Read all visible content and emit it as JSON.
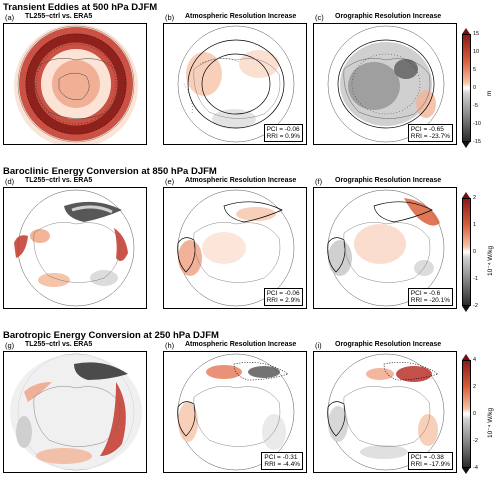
{
  "rows": [
    {
      "title": "Transient Eddies at 500 hPa DJFM",
      "unit": "m",
      "colorbar_ticks": [
        "15",
        "10",
        "5",
        "0",
        "-5",
        "-10",
        "-15"
      ],
      "panels": [
        {
          "label": "(a)",
          "title": "TL255–ctrl vs. ERA5",
          "pci": "",
          "rri": ""
        },
        {
          "label": "(b)",
          "title": "Atmospheric Resolution Increase",
          "pci": "PCI = -0.06",
          "rri": "RRI = 0.9%"
        },
        {
          "label": "(c)",
          "title": "Orographic Resolution Increase",
          "pci": "PCI = -0.65",
          "rri": "RRI = -23.7%"
        }
      ]
    },
    {
      "title": "Baroclinic Energy Conversion at 850 hPa DJFM",
      "unit": "10⁻⁴ W/kg",
      "colorbar_ticks": [
        "2",
        "1",
        "0",
        "-1",
        "-2"
      ],
      "panels": [
        {
          "label": "(d)",
          "title": "TL255–ctrl vs. ERA5",
          "pci": "",
          "rri": ""
        },
        {
          "label": "(e)",
          "title": "Atmospheric Resolution Increase",
          "pci": "PCI = -0.06",
          "rri": "RRI = 2.9%"
        },
        {
          "label": "(f)",
          "title": "Orographic Resolution Increase",
          "pci": "PCI = -0.6",
          "rri": "RRI = -20.1%"
        }
      ]
    },
    {
      "title": "Barotropic Energy Conversion at 250 hPa DJFM",
      "unit": "10⁻⁴ W/kg",
      "colorbar_ticks": [
        "4",
        "2",
        "0",
        "-2",
        "-4"
      ],
      "panels": [
        {
          "label": "(g)",
          "title": "TL255–ctrl vs. ERA5",
          "pci": "",
          "rri": ""
        },
        {
          "label": "(h)",
          "title": "Atmospheric Resolution Increase",
          "pci": "PCI = -0.31",
          "rri": "RRI = -4.4%"
        },
        {
          "label": "(i)",
          "title": "Orographic Resolution Increase",
          "pci": "PCI = -0.38",
          "rri": "RRI = -17.9%"
        }
      ]
    }
  ],
  "colors": {
    "pos_dark": "#8b1a1a",
    "pos_mid": "#d9603b",
    "pos_light": "#f6c4a8",
    "neg_light": "#d0d0d0",
    "neg_mid": "#8a8a8a",
    "neg_dark": "#2a2a2a"
  }
}
